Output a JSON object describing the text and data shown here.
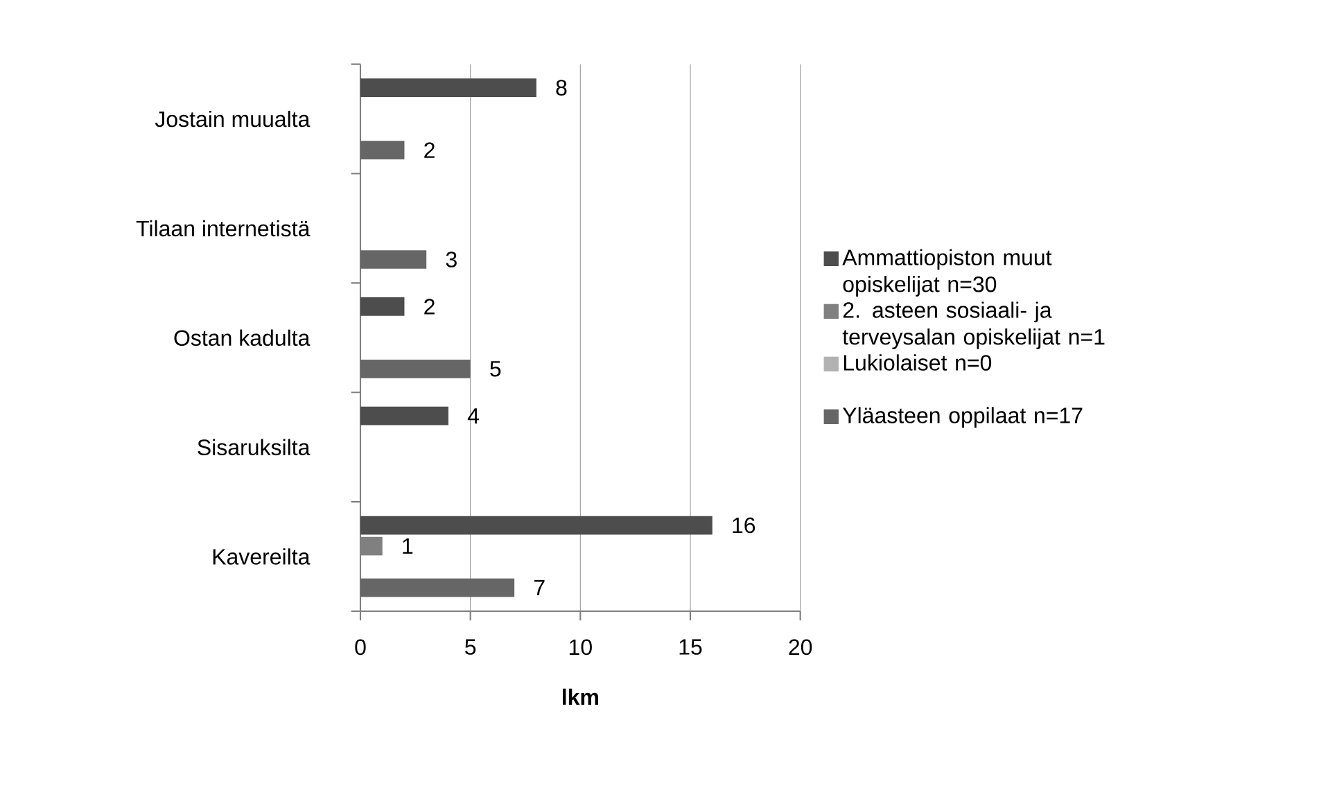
{
  "chart_data": {
    "type": "bar",
    "orientation": "horizontal",
    "xlabel": "lkm",
    "categories": [
      "Jostain muualta",
      "Tilaan internetistä",
      "Ostan kadulta",
      "Sisaruksilta",
      "Kavereilta"
    ],
    "series": [
      {
        "name": "Ammattiopiston muut opiskelijat n=30",
        "color": "#4d4d4d",
        "values": [
          8,
          null,
          2,
          4,
          16
        ]
      },
      {
        "name": "2. asteen sosiaali- ja terveysalan opiskelijat n=1",
        "color": "#808080",
        "values": [
          null,
          null,
          null,
          null,
          1
        ]
      },
      {
        "name": "Lukiolaiset n=0",
        "color": "#b2b2b2",
        "values": [
          null,
          null,
          null,
          null,
          null
        ]
      },
      {
        "name": "Yläasteen oppilaat n=17",
        "color": "#666666",
        "values": [
          2,
          3,
          5,
          null,
          7
        ]
      }
    ],
    "xlim": [
      0,
      20
    ],
    "xticks": [
      0,
      5,
      10,
      15,
      20
    ],
    "grid": "x",
    "legend": "right",
    "data_labels": true
  }
}
